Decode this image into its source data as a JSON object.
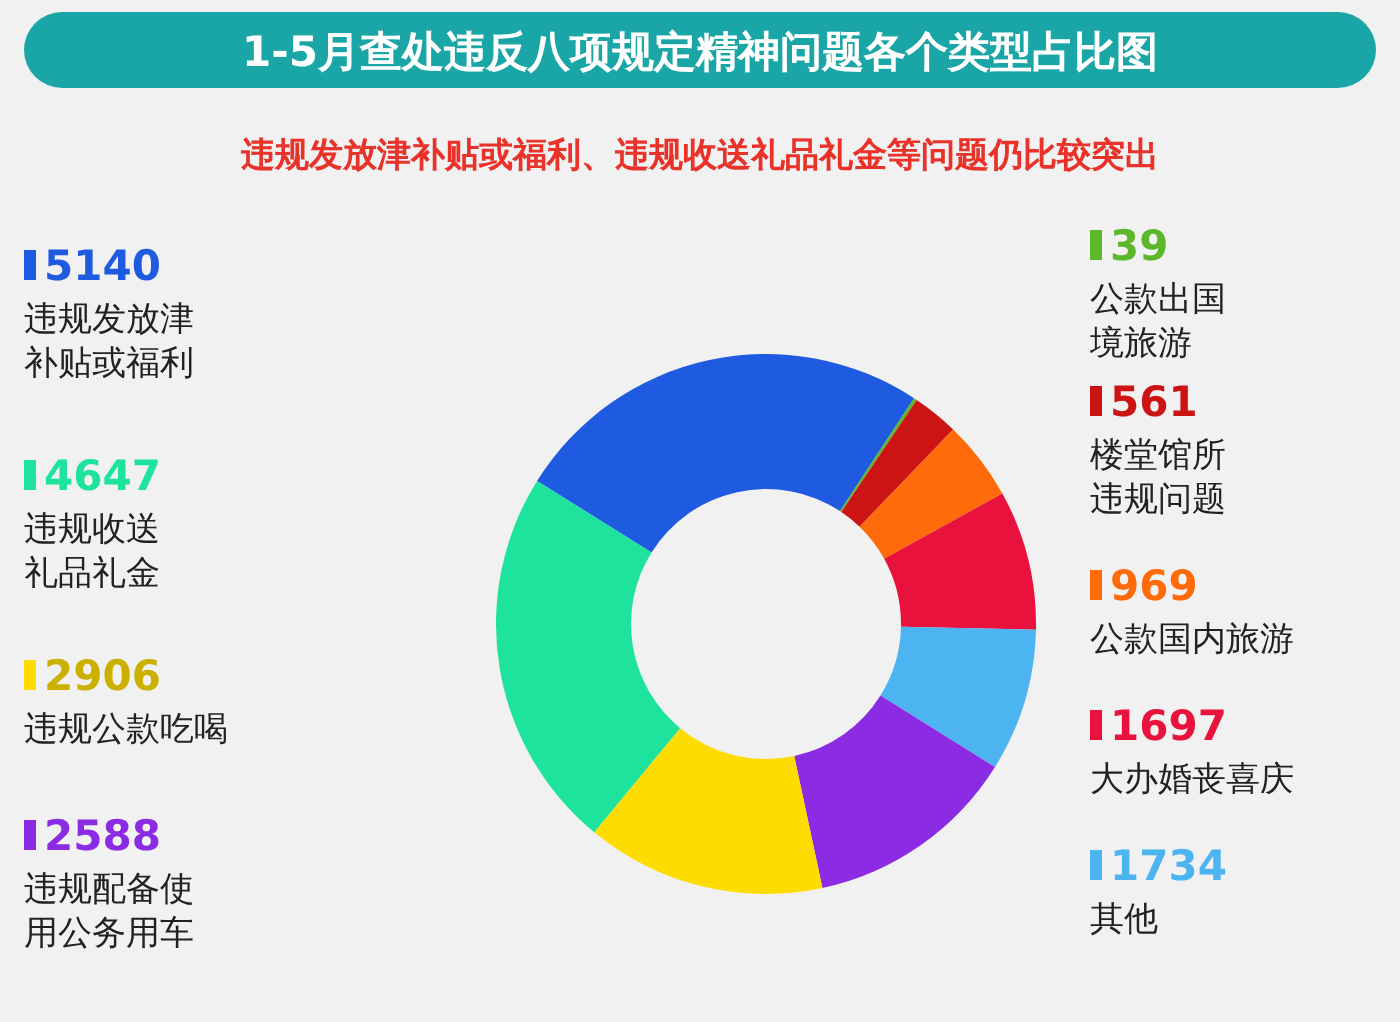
{
  "chart_data": {
    "type": "donut",
    "title": "1-5月查处违反八项规定精神问题各个类型占比图",
    "subtitle": "违规发放津补贴或福利、违规收送礼品礼金等问题仍比较突出",
    "categories": [
      "违规发放津补贴或福利",
      "公款出国境旅游",
      "楼堂馆所违规问题",
      "公款国内旅游",
      "大办婚丧喜庆",
      "其他",
      "违规配备使用公务用车",
      "违规公款吃喝",
      "违规收送礼品礼金"
    ],
    "values": [
      5140,
      39,
      561,
      969,
      1697,
      1734,
      2588,
      2906,
      4647
    ],
    "colors": [
      "#1f5be0",
      "#5cb82a",
      "#cc1414",
      "#ff6a0a",
      "#e8123c",
      "#4cb4f0",
      "#8c2be4",
      "#ffdc00",
      "#1de39c"
    ],
    "data_labels": true,
    "legend": "left"
  }
}
